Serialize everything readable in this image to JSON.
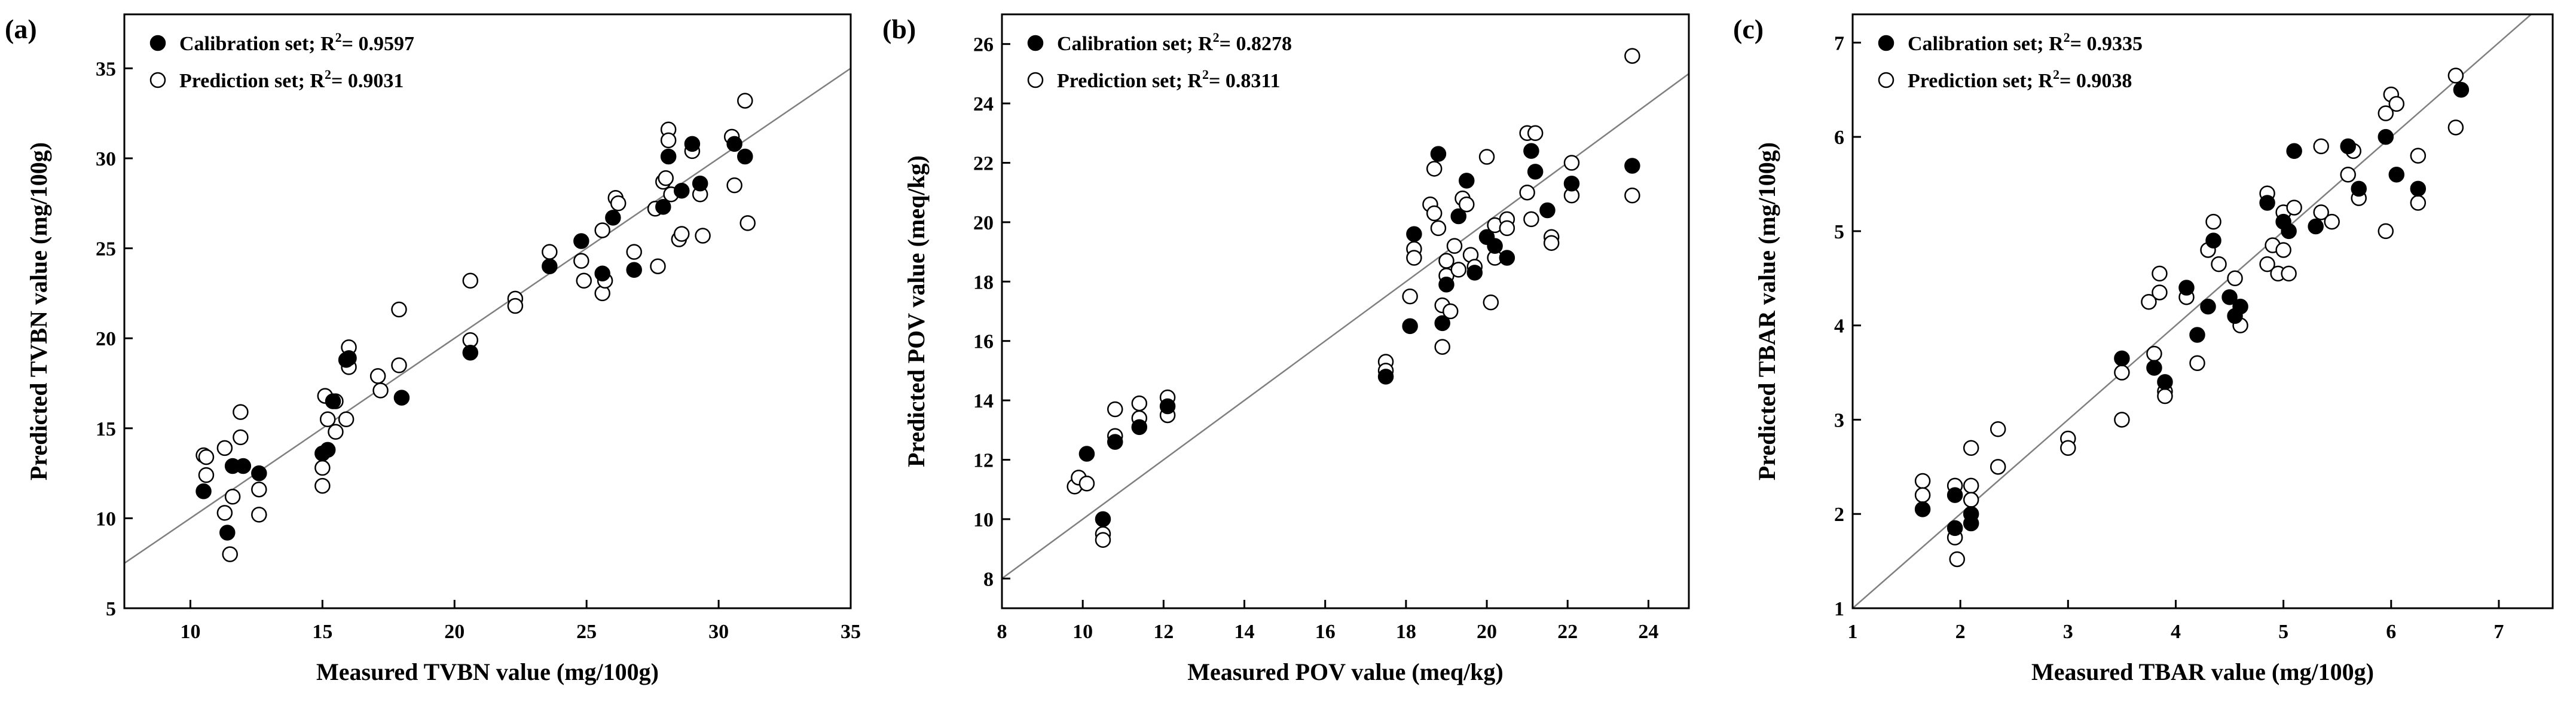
{
  "colors": {
    "calibration": "#000000",
    "prediction": "#ffffff",
    "axis": "#000000",
    "identity_line": "#7f7f7f"
  },
  "chart_data": [
    {
      "type": "scatter",
      "panel_label": "(a)",
      "xlabel": "Measured TVBN value (mg/100g)",
      "ylabel": "Predicted TVBN value (mg/100g)",
      "xlim": [
        7.5,
        35
      ],
      "ylim": [
        5,
        38
      ],
      "xticks": [
        10,
        15,
        20,
        25,
        30,
        35
      ],
      "yticks": [
        5,
        10,
        15,
        20,
        25,
        30,
        35
      ],
      "identity_line": true,
      "legend_position": "top-left",
      "series": [
        {
          "name": "Calibration set",
          "legend_label": "Calibration set; R",
          "legend_sup": "2",
          "legend_value": "= 0.9597",
          "marker": "filled-circle",
          "points": [
            [
              10.5,
              11.5
            ],
            [
              11.4,
              9.2
            ],
            [
              11.6,
              12.9
            ],
            [
              12.0,
              12.9
            ],
            [
              12.6,
              12.5
            ],
            [
              15.0,
              13.6
            ],
            [
              15.2,
              13.8
            ],
            [
              15.4,
              16.5
            ],
            [
              15.9,
              18.8
            ],
            [
              16.0,
              18.9
            ],
            [
              18.0,
              16.7
            ],
            [
              20.6,
              19.2
            ],
            [
              23.6,
              24.0
            ],
            [
              24.8,
              25.4
            ],
            [
              25.6,
              23.6
            ],
            [
              26.0,
              26.7
            ],
            [
              26.8,
              23.8
            ],
            [
              27.9,
              27.3
            ],
            [
              28.1,
              30.1
            ],
            [
              28.6,
              28.2
            ],
            [
              29.0,
              30.8
            ],
            [
              29.3,
              28.6
            ],
            [
              30.6,
              30.8
            ],
            [
              31.0,
              30.1
            ]
          ]
        },
        {
          "name": "Prediction set",
          "legend_label": "Prediction set; R",
          "legend_sup": "2",
          "legend_value": "= 0.9031",
          "marker": "open-circle",
          "points": [
            [
              10.5,
              13.5
            ],
            [
              10.6,
              13.4
            ],
            [
              10.6,
              12.4
            ],
            [
              11.3,
              10.3
            ],
            [
              11.3,
              13.9
            ],
            [
              11.5,
              8.0
            ],
            [
              11.6,
              11.2
            ],
            [
              11.9,
              15.9
            ],
            [
              11.9,
              14.5
            ],
            [
              12.6,
              11.6
            ],
            [
              12.6,
              10.2
            ],
            [
              15.0,
              12.8
            ],
            [
              15.0,
              11.8
            ],
            [
              15.1,
              16.8
            ],
            [
              15.2,
              15.5
            ],
            [
              15.5,
              14.8
            ],
            [
              15.5,
              16.5
            ],
            [
              15.9,
              15.5
            ],
            [
              16.0,
              19.5
            ],
            [
              16.0,
              18.4
            ],
            [
              17.1,
              17.9
            ],
            [
              17.2,
              17.1
            ],
            [
              17.9,
              21.6
            ],
            [
              17.9,
              18.5
            ],
            [
              20.6,
              23.2
            ],
            [
              20.6,
              19.9
            ],
            [
              22.3,
              22.2
            ],
            [
              22.3,
              21.8
            ],
            [
              23.6,
              24.8
            ],
            [
              24.8,
              24.3
            ],
            [
              24.9,
              23.2
            ],
            [
              25.6,
              26.0
            ],
            [
              25.6,
              22.5
            ],
            [
              25.7,
              23.2
            ],
            [
              26.1,
              27.8
            ],
            [
              26.2,
              27.5
            ],
            [
              26.8,
              24.8
            ],
            [
              27.6,
              27.2
            ],
            [
              27.7,
              24.0
            ],
            [
              27.9,
              28.7
            ],
            [
              28.0,
              28.9
            ],
            [
              28.1,
              31.6
            ],
            [
              28.1,
              31.0
            ],
            [
              28.2,
              28.0
            ],
            [
              28.5,
              25.5
            ],
            [
              28.6,
              25.8
            ],
            [
              29.0,
              30.4
            ],
            [
              29.3,
              28.0
            ],
            [
              29.4,
              25.7
            ],
            [
              30.5,
              31.2
            ],
            [
              30.6,
              28.5
            ],
            [
              31.0,
              33.2
            ],
            [
              31.1,
              26.4
            ]
          ]
        }
      ]
    },
    {
      "type": "scatter",
      "panel_label": "(b)",
      "xlabel": "Measured POV value (meq/kg)",
      "ylabel": "Predicted POV value (meq/kg)",
      "xlim": [
        8,
        25
      ],
      "ylim": [
        7,
        27
      ],
      "xticks": [
        8,
        10,
        12,
        14,
        16,
        18,
        20,
        22,
        24
      ],
      "yticks": [
        8,
        10,
        12,
        14,
        16,
        18,
        20,
        22,
        24,
        26
      ],
      "identity_line": true,
      "legend_position": "top-left",
      "series": [
        {
          "name": "Calibration set",
          "legend_label": "Calibration set; R",
          "legend_sup": "2",
          "legend_value": "= 0.8278",
          "marker": "filled-circle",
          "points": [
            [
              10.1,
              12.2
            ],
            [
              10.5,
              10.0
            ],
            [
              10.8,
              12.6
            ],
            [
              11.4,
              13.1
            ],
            [
              12.1,
              13.8
            ],
            [
              17.5,
              14.8
            ],
            [
              18.1,
              16.5
            ],
            [
              18.2,
              19.6
            ],
            [
              18.8,
              22.3
            ],
            [
              18.9,
              16.6
            ],
            [
              19.0,
              17.9
            ],
            [
              19.3,
              20.2
            ],
            [
              19.5,
              21.4
            ],
            [
              19.7,
              18.3
            ],
            [
              20.0,
              19.5
            ],
            [
              20.2,
              19.2
            ],
            [
              20.5,
              18.8
            ],
            [
              21.1,
              22.4
            ],
            [
              21.2,
              21.7
            ],
            [
              21.5,
              20.4
            ],
            [
              22.1,
              21.3
            ],
            [
              23.6,
              21.9
            ]
          ]
        },
        {
          "name": "Prediction set",
          "legend_label": "Prediction set; R",
          "legend_sup": "2",
          "legend_value": "= 0.8311",
          "marker": "open-circle",
          "points": [
            [
              9.8,
              11.1
            ],
            [
              9.9,
              11.4
            ],
            [
              10.1,
              11.2
            ],
            [
              10.5,
              9.5
            ],
            [
              10.5,
              9.3
            ],
            [
              10.8,
              13.7
            ],
            [
              10.8,
              12.8
            ],
            [
              11.4,
              13.9
            ],
            [
              11.4,
              13.4
            ],
            [
              12.1,
              14.1
            ],
            [
              12.1,
              13.5
            ],
            [
              17.5,
              15.3
            ],
            [
              17.5,
              15.0
            ],
            [
              18.1,
              17.5
            ],
            [
              18.2,
              19.1
            ],
            [
              18.2,
              18.8
            ],
            [
              18.6,
              20.6
            ],
            [
              18.7,
              21.8
            ],
            [
              18.7,
              20.3
            ],
            [
              18.8,
              19.8
            ],
            [
              18.9,
              17.2
            ],
            [
              18.9,
              15.8
            ],
            [
              19.0,
              18.7
            ],
            [
              19.0,
              18.2
            ],
            [
              19.1,
              17.0
            ],
            [
              19.2,
              19.2
            ],
            [
              19.3,
              18.4
            ],
            [
              19.4,
              20.8
            ],
            [
              19.5,
              20.6
            ],
            [
              19.6,
              18.9
            ],
            [
              19.7,
              18.5
            ],
            [
              20.0,
              22.2
            ],
            [
              20.1,
              17.3
            ],
            [
              20.2,
              18.8
            ],
            [
              20.2,
              19.9
            ],
            [
              20.5,
              20.1
            ],
            [
              20.5,
              19.8
            ],
            [
              21.0,
              23.0
            ],
            [
              21.0,
              21.0
            ],
            [
              21.1,
              20.1
            ],
            [
              21.2,
              23.0
            ],
            [
              21.6,
              19.5
            ],
            [
              21.6,
              19.3
            ],
            [
              22.1,
              22.0
            ],
            [
              22.1,
              20.9
            ],
            [
              23.6,
              25.6
            ],
            [
              23.6,
              20.9
            ]
          ]
        }
      ]
    },
    {
      "type": "scatter",
      "panel_label": "(c)",
      "xlabel": "Measured TBAR value (mg/100g)",
      "ylabel": "Predicted TBAR value (mg/100g)",
      "xlim": [
        1,
        7.5
      ],
      "ylim": [
        1,
        7.3
      ],
      "xticks": [
        1,
        2,
        3,
        4,
        5,
        6,
        7
      ],
      "yticks": [
        1,
        2,
        3,
        4,
        5,
        6,
        7
      ],
      "identity_line": true,
      "legend_position": "top-left",
      "series": [
        {
          "name": "Calibration set",
          "legend_label": "Calibration set; R",
          "legend_sup": "2",
          "legend_value": "= 0.9335",
          "marker": "filled-circle",
          "points": [
            [
              1.65,
              2.05
            ],
            [
              1.95,
              2.2
            ],
            [
              1.95,
              1.85
            ],
            [
              2.1,
              1.9
            ],
            [
              2.1,
              2.0
            ],
            [
              3.5,
              3.65
            ],
            [
              3.8,
              3.55
            ],
            [
              3.9,
              3.4
            ],
            [
              4.1,
              4.4
            ],
            [
              4.2,
              3.9
            ],
            [
              4.3,
              4.2
            ],
            [
              4.35,
              4.9
            ],
            [
              4.5,
              4.3
            ],
            [
              4.55,
              4.1
            ],
            [
              4.6,
              4.2
            ],
            [
              4.85,
              5.3
            ],
            [
              5.0,
              5.1
            ],
            [
              5.05,
              5.0
            ],
            [
              5.1,
              5.85
            ],
            [
              5.3,
              5.05
            ],
            [
              5.6,
              5.9
            ],
            [
              5.7,
              5.45
            ],
            [
              5.95,
              6.0
            ],
            [
              6.05,
              5.6
            ],
            [
              6.25,
              5.45
            ],
            [
              6.65,
              6.5
            ]
          ]
        },
        {
          "name": "Prediction set",
          "legend_label": "Prediction set; R",
          "legend_sup": "2",
          "legend_value": "= 0.9038",
          "marker": "open-circle",
          "points": [
            [
              1.65,
              2.35
            ],
            [
              1.65,
              2.2
            ],
            [
              1.95,
              2.3
            ],
            [
              1.95,
              1.75
            ],
            [
              1.97,
              1.52
            ],
            [
              2.1,
              2.7
            ],
            [
              2.1,
              2.3
            ],
            [
              2.1,
              2.15
            ],
            [
              2.35,
              2.9
            ],
            [
              2.35,
              2.5
            ],
            [
              3.0,
              2.8
            ],
            [
              3.0,
              2.7
            ],
            [
              3.5,
              3.0
            ],
            [
              3.5,
              3.5
            ],
            [
              3.75,
              4.25
            ],
            [
              3.8,
              3.7
            ],
            [
              3.85,
              4.55
            ],
            [
              3.85,
              4.35
            ],
            [
              3.9,
              3.3
            ],
            [
              3.9,
              3.25
            ],
            [
              4.1,
              4.3
            ],
            [
              4.2,
              3.6
            ],
            [
              4.3,
              4.8
            ],
            [
              4.35,
              5.1
            ],
            [
              4.4,
              4.65
            ],
            [
              4.55,
              4.5
            ],
            [
              4.6,
              4.0
            ],
            [
              4.85,
              5.4
            ],
            [
              4.85,
              4.65
            ],
            [
              4.9,
              4.85
            ],
            [
              4.95,
              4.55
            ],
            [
              5.0,
              5.2
            ],
            [
              5.0,
              4.8
            ],
            [
              5.05,
              4.55
            ],
            [
              5.1,
              5.25
            ],
            [
              5.35,
              5.9
            ],
            [
              5.35,
              5.2
            ],
            [
              5.45,
              5.1
            ],
            [
              5.6,
              5.6
            ],
            [
              5.65,
              5.85
            ],
            [
              5.7,
              5.35
            ],
            [
              5.95,
              5.0
            ],
            [
              5.95,
              6.25
            ],
            [
              6.0,
              6.45
            ],
            [
              6.05,
              6.35
            ],
            [
              6.25,
              5.8
            ],
            [
              6.25,
              5.3
            ],
            [
              6.6,
              6.65
            ],
            [
              6.6,
              6.1
            ]
          ]
        }
      ]
    }
  ]
}
